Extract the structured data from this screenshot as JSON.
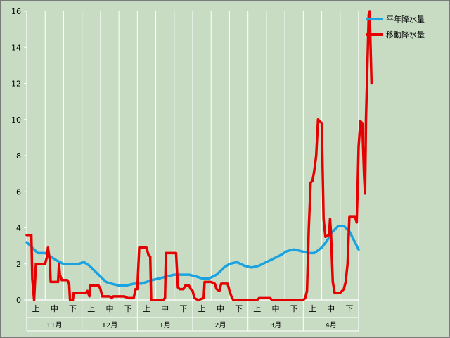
{
  "chart_data": {
    "type": "line",
    "ylim": [
      0,
      16
    ],
    "yticks": [
      "0",
      "2",
      "4",
      "6",
      "8",
      "10",
      "12",
      "14",
      "16"
    ],
    "x_sub_labels": [
      "上",
      "中",
      "下",
      "上",
      "中",
      "下",
      "上",
      "中",
      "下",
      "上",
      "中",
      "下",
      "上",
      "中",
      "下",
      "上",
      "中",
      "下"
    ],
    "x_month_labels": [
      "11月",
      "12月",
      "1月",
      "2月",
      "3月",
      "4月"
    ],
    "x_range": [
      0,
      18
    ],
    "grid": "vertical",
    "legend_position": "top-right",
    "series": [
      {
        "name": "平年降水量",
        "color": "#1aa3e0",
        "points": [
          [
            0.0,
            3.2
          ],
          [
            0.3,
            2.9
          ],
          [
            0.6,
            2.6
          ],
          [
            1.0,
            2.6
          ],
          [
            1.3,
            2.4
          ],
          [
            1.6,
            2.2
          ],
          [
            2.0,
            2.0
          ],
          [
            2.4,
            2.0
          ],
          [
            2.8,
            2.0
          ],
          [
            3.1,
            2.1
          ],
          [
            3.4,
            1.9
          ],
          [
            3.7,
            1.6
          ],
          [
            4.0,
            1.3
          ],
          [
            4.3,
            1.0
          ],
          [
            4.6,
            0.9
          ],
          [
            5.0,
            0.8
          ],
          [
            5.4,
            0.8
          ],
          [
            5.8,
            0.9
          ],
          [
            6.2,
            0.9
          ],
          [
            6.5,
            1.0
          ],
          [
            6.8,
            1.1
          ],
          [
            7.2,
            1.2
          ],
          [
            7.6,
            1.3
          ],
          [
            8.0,
            1.4
          ],
          [
            8.4,
            1.4
          ],
          [
            8.8,
            1.4
          ],
          [
            9.2,
            1.3
          ],
          [
            9.5,
            1.2
          ],
          [
            9.9,
            1.2
          ],
          [
            10.3,
            1.4
          ],
          [
            10.7,
            1.8
          ],
          [
            11.0,
            2.0
          ],
          [
            11.4,
            2.1
          ],
          [
            11.8,
            1.9
          ],
          [
            12.2,
            1.8
          ],
          [
            12.6,
            1.9
          ],
          [
            13.0,
            2.1
          ],
          [
            13.4,
            2.3
          ],
          [
            13.8,
            2.5
          ],
          [
            14.1,
            2.7
          ],
          [
            14.5,
            2.8
          ],
          [
            14.9,
            2.7
          ],
          [
            15.3,
            2.6
          ],
          [
            15.6,
            2.6
          ],
          [
            16.0,
            2.9
          ],
          [
            16.3,
            3.3
          ],
          [
            16.6,
            3.8
          ],
          [
            16.9,
            4.1
          ],
          [
            17.2,
            4.1
          ],
          [
            17.5,
            3.8
          ],
          [
            17.8,
            3.2
          ],
          [
            18.0,
            2.8
          ]
        ]
      },
      {
        "name": "移動降水量",
        "color": "#e60000",
        "points": [
          [
            0.0,
            3.6
          ],
          [
            0.25,
            3.6
          ],
          [
            0.3,
            1.2
          ],
          [
            0.4,
            0.0
          ],
          [
            0.5,
            2.0
          ],
          [
            0.9,
            2.0
          ],
          [
            1.0,
            2.0
          ],
          [
            1.1,
            2.4
          ],
          [
            1.15,
            2.9
          ],
          [
            1.25,
            2.2
          ],
          [
            1.3,
            1.0
          ],
          [
            1.7,
            1.0
          ],
          [
            1.75,
            2.0
          ],
          [
            1.8,
            1.4
          ],
          [
            1.9,
            1.1
          ],
          [
            2.2,
            1.1
          ],
          [
            2.3,
            0.9
          ],
          [
            2.35,
            0.0
          ],
          [
            2.5,
            0.0
          ],
          [
            2.55,
            0.4
          ],
          [
            3.0,
            0.4
          ],
          [
            3.2,
            0.4
          ],
          [
            3.3,
            0.5
          ],
          [
            3.4,
            0.2
          ],
          [
            3.45,
            0.8
          ],
          [
            3.9,
            0.8
          ],
          [
            4.0,
            0.6
          ],
          [
            4.1,
            0.2
          ],
          [
            4.5,
            0.2
          ],
          [
            4.6,
            0.1
          ],
          [
            4.7,
            0.2
          ],
          [
            5.3,
            0.2
          ],
          [
            5.5,
            0.1
          ],
          [
            5.8,
            0.1
          ],
          [
            5.9,
            0.6
          ],
          [
            6.0,
            0.6
          ],
          [
            6.1,
            2.9
          ],
          [
            6.5,
            2.9
          ],
          [
            6.6,
            2.5
          ],
          [
            6.7,
            2.4
          ],
          [
            6.75,
            0.0
          ],
          [
            7.4,
            0.0
          ],
          [
            7.5,
            0.1
          ],
          [
            7.55,
            2.6
          ],
          [
            8.1,
            2.6
          ],
          [
            8.2,
            0.7
          ],
          [
            8.3,
            0.6
          ],
          [
            8.5,
            0.6
          ],
          [
            8.6,
            0.8
          ],
          [
            8.8,
            0.8
          ],
          [
            8.9,
            0.6
          ],
          [
            9.0,
            0.5
          ],
          [
            9.1,
            0.1
          ],
          [
            9.3,
            0.0
          ],
          [
            9.6,
            0.1
          ],
          [
            9.65,
            1.0
          ],
          [
            10.0,
            1.0
          ],
          [
            10.2,
            0.9
          ],
          [
            10.3,
            0.6
          ],
          [
            10.45,
            0.5
          ],
          [
            10.55,
            0.9
          ],
          [
            10.9,
            0.9
          ],
          [
            11.0,
            0.5
          ],
          [
            11.1,
            0.2
          ],
          [
            11.2,
            0.0
          ],
          [
            12.5,
            0.0
          ],
          [
            12.6,
            0.1
          ],
          [
            13.2,
            0.1
          ],
          [
            13.3,
            0.0
          ],
          [
            15.0,
            0.0
          ],
          [
            15.1,
            0.1
          ],
          [
            15.2,
            0.5
          ],
          [
            15.3,
            4.0
          ],
          [
            15.4,
            6.5
          ],
          [
            15.5,
            6.6
          ],
          [
            15.6,
            7.2
          ],
          [
            15.7,
            8.0
          ],
          [
            15.8,
            10.0
          ],
          [
            16.0,
            9.8
          ],
          [
            16.1,
            4.5
          ],
          [
            16.2,
            3.5
          ],
          [
            16.4,
            3.6
          ],
          [
            16.45,
            4.5
          ],
          [
            16.5,
            3.7
          ],
          [
            16.6,
            1.0
          ],
          [
            16.7,
            0.4
          ],
          [
            17.0,
            0.4
          ],
          [
            17.2,
            0.6
          ],
          [
            17.3,
            1.0
          ],
          [
            17.4,
            2.0
          ],
          [
            17.5,
            4.6
          ],
          [
            17.8,
            4.6
          ],
          [
            17.9,
            4.3
          ],
          [
            18.0,
            8.5
          ],
          [
            18.1,
            9.9
          ],
          [
            18.2,
            9.8
          ],
          [
            18.3,
            6.8
          ],
          [
            18.35,
            5.9
          ],
          [
            18.4,
            10.0
          ],
          [
            18.55,
            15.8
          ],
          [
            18.6,
            16.0
          ],
          [
            18.7,
            12.0
          ]
        ]
      }
    ]
  }
}
